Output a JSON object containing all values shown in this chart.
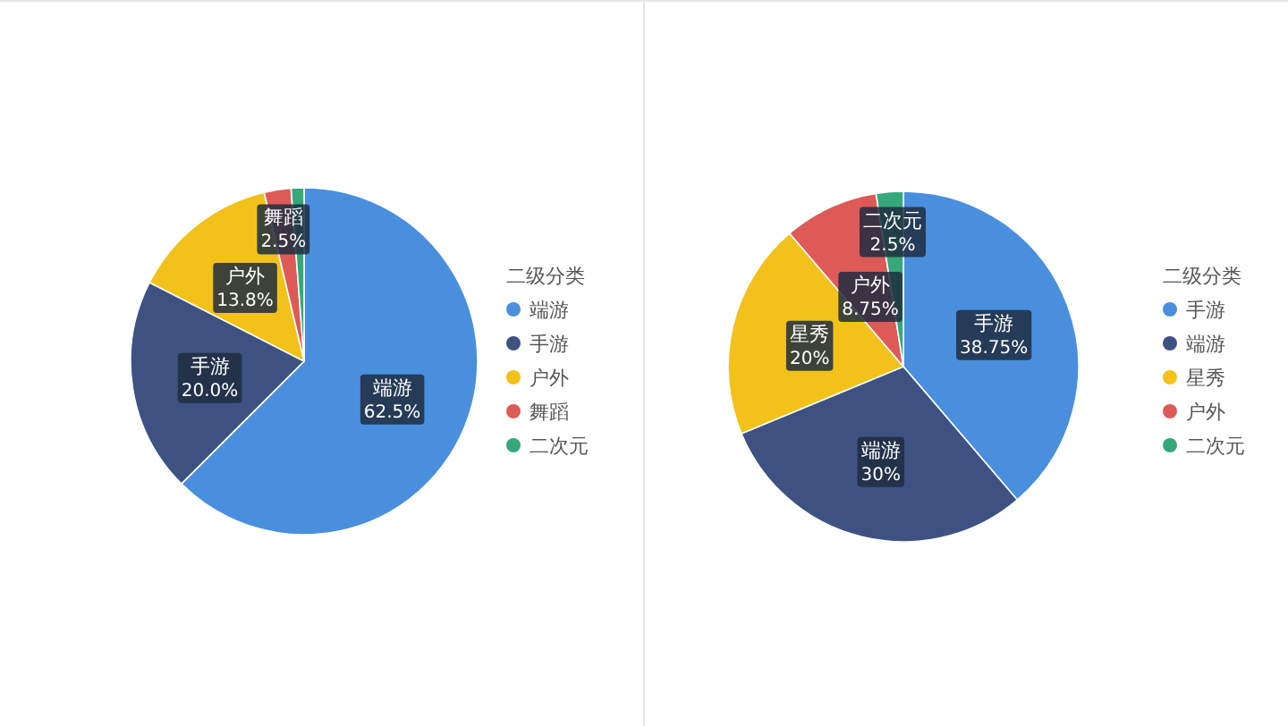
{
  "chart_data": [
    {
      "type": "pie",
      "legend_title": "二级分类",
      "legend": "right",
      "categories": [
        "端游",
        "手游",
        "户外",
        "舞蹈",
        "二次元"
      ],
      "values": [
        62.5,
        20.0,
        13.8,
        2.5,
        1.2
      ],
      "colors": [
        "#4a8fde",
        "#3e5282",
        "#f2c21b",
        "#dd5a57",
        "#36a77a"
      ],
      "value_labels": [
        "62.5%",
        "20.0%",
        "13.8%",
        "2.5%",
        null
      ]
    },
    {
      "type": "pie",
      "legend_title": "二级分类",
      "legend": "right",
      "categories": [
        "手游",
        "端游",
        "星秀",
        "户外",
        "二次元"
      ],
      "values": [
        38.75,
        30,
        20,
        8.75,
        2.5
      ],
      "colors": [
        "#4a8fde",
        "#3e5282",
        "#f2c21b",
        "#dd5a57",
        "#36a77a"
      ],
      "value_labels": [
        "38.75%",
        "30%",
        "20%",
        "8.75%",
        "2.5%"
      ]
    }
  ]
}
